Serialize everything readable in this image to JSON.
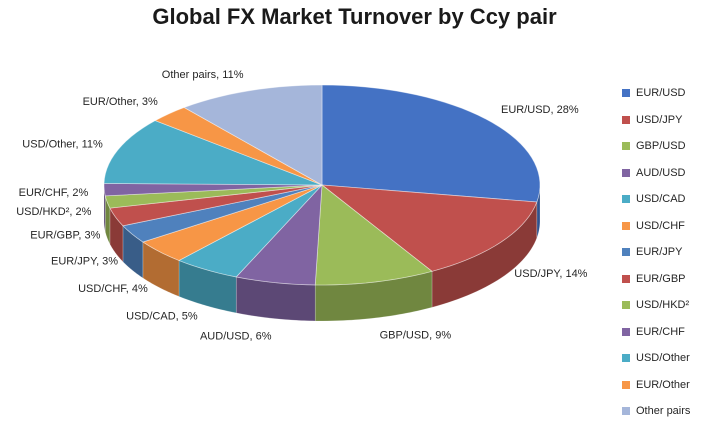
{
  "chart_data": {
    "type": "pie",
    "title": "Global FX Market Turnover by Ccy pair",
    "legend_position": "right",
    "three_d": true,
    "slices": [
      {
        "name": "EUR/USD",
        "value": 28,
        "label": "EUR/USD, 28%",
        "color": "#4472C4"
      },
      {
        "name": "USD/JPY",
        "value": 14,
        "label": "USD/JPY, 14%",
        "color": "#C0504D"
      },
      {
        "name": "GBP/USD",
        "value": 9,
        "label": "GBP/USD, 9%",
        "color": "#9BBB59"
      },
      {
        "name": "AUD/USD",
        "value": 6,
        "label": "AUD/USD, 6%",
        "color": "#8064A2"
      },
      {
        "name": "USD/CAD",
        "value": 5,
        "label": "USD/CAD, 5%",
        "color": "#4BACC6"
      },
      {
        "name": "USD/CHF",
        "value": 4,
        "label": "USD/CHF, 4%",
        "color": "#F79646"
      },
      {
        "name": "EUR/JPY",
        "value": 3,
        "label": "EUR/JPY, 3%",
        "color": "#4F81BD"
      },
      {
        "name": "EUR/GBP",
        "value": 3,
        "label": "EUR/GBP, 3%",
        "color": "#C0504D"
      },
      {
        "name": "USD/HKD²",
        "value": 2,
        "label": "USD/HKD², 2%",
        "color": "#9BBB59"
      },
      {
        "name": "EUR/CHF",
        "value": 2,
        "label": "EUR/CHF, 2%",
        "color": "#8064A2"
      },
      {
        "name": "USD/Other",
        "value": 11,
        "label": "USD/Other, 11%",
        "color": "#4BACC6"
      },
      {
        "name": "EUR/Other",
        "value": 3,
        "label": "EUR/Other, 3%",
        "color": "#F79646"
      },
      {
        "name": "Other pairs",
        "value": 11,
        "label": "Other pairs, 11%",
        "color": "#A5B6DA"
      }
    ]
  }
}
